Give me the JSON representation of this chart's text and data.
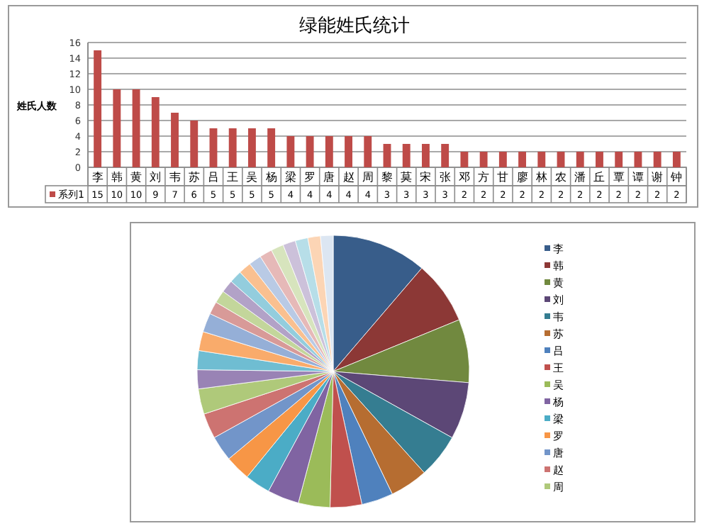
{
  "chart_data": [
    {
      "type": "bar",
      "title": "绿能姓氏统计",
      "ylabel": "姓氏人数",
      "categories": [
        "李",
        "韩",
        "黄",
        "刘",
        "韦",
        "苏",
        "吕",
        "王",
        "吴",
        "杨",
        "梁",
        "罗",
        "唐",
        "赵",
        "周",
        "黎",
        "莫",
        "宋",
        "张",
        "邓",
        "方",
        "甘",
        "廖",
        "林",
        "农",
        "潘",
        "丘",
        "覃",
        "谭",
        "谢",
        "钟"
      ],
      "series": [
        {
          "name": "系列1",
          "color": "#be4b48",
          "values": [
            15,
            10,
            10,
            9,
            7,
            6,
            5,
            5,
            5,
            5,
            4,
            4,
            4,
            4,
            4,
            3,
            3,
            3,
            3,
            2,
            2,
            2,
            2,
            2,
            2,
            2,
            2,
            2,
            2,
            2,
            2
          ]
        }
      ],
      "ylim": [
        0,
        16
      ],
      "yticks": [
        0,
        2,
        4,
        6,
        8,
        10,
        12,
        14,
        16
      ],
      "grid": "y",
      "data_labels": true,
      "legend": "bottom"
    },
    {
      "type": "pie",
      "legend": "right",
      "categories": [
        "李",
        "韩",
        "黄",
        "刘",
        "韦",
        "苏",
        "吕",
        "王",
        "吴",
        "杨",
        "梁",
        "罗",
        "唐",
        "赵",
        "周",
        null,
        null,
        null,
        null,
        null,
        null,
        null,
        null,
        null,
        null,
        null,
        null,
        null,
        null,
        null,
        null
      ],
      "values": [
        11.28,
        7.52,
        7.52,
        6.77,
        5.26,
        4.51,
        3.76,
        3.76,
        3.76,
        3.76,
        3.01,
        3.01,
        3.01,
        3.01,
        3.01,
        2.26,
        2.26,
        2.26,
        2.26,
        1.51,
        1.51,
        1.5,
        1.5,
        1.5,
        1.5,
        1.5,
        1.5,
        1.5,
        1.5,
        1.5,
        1.5
      ],
      "colors": [
        "#385d8a",
        "#8c3836",
        "#71893f",
        "#5c4776",
        "#357d91",
        "#b66d31",
        "#4f81bd",
        "#c0504d",
        "#9bbb59",
        "#8064a2",
        "#4bacc6",
        "#f79646",
        "#7295c9",
        "#cd7371",
        "#afc97a",
        "#9983b5",
        "#6fbdd2",
        "#f9ab6b",
        "#95afd7",
        "#d89a98",
        "#c3d69b",
        "#b2a2c7",
        "#93cddd",
        "#fac090",
        "#b9cae5",
        "#e6b9b8",
        "#d7e4bd",
        "#ccc1da",
        "#b7dee8",
        "#fcd5b5",
        "#dce6f2"
      ]
    }
  ]
}
